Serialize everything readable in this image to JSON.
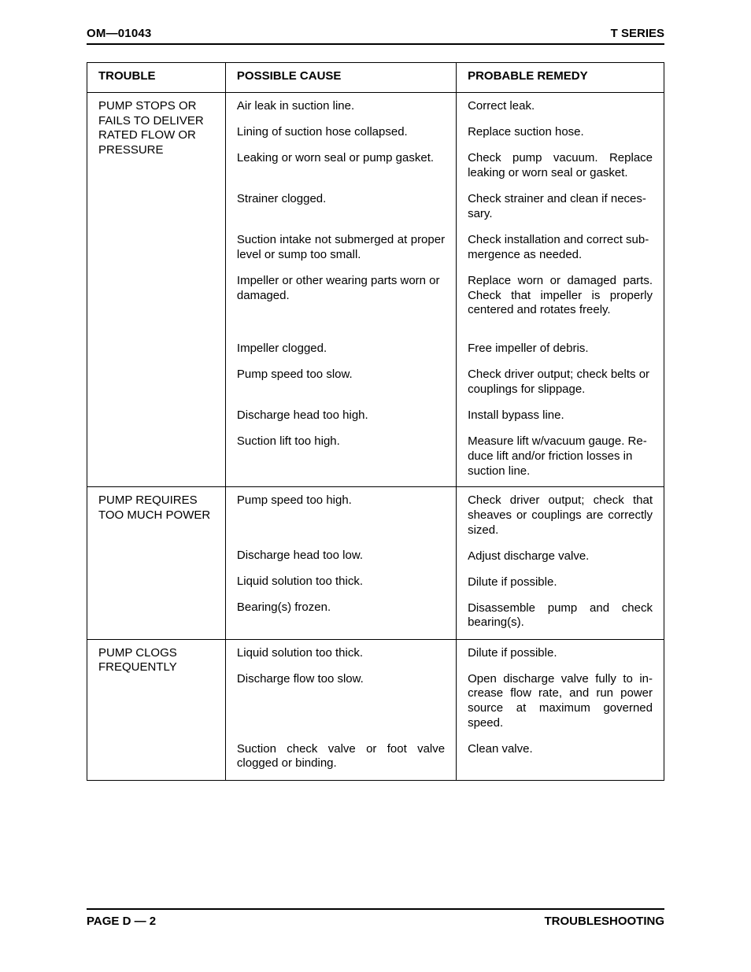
{
  "header": {
    "left": "OM—01043",
    "right": "T SERIES"
  },
  "footer": {
    "left": "PAGE D — 2",
    "right": "TROUBLESHOOTING"
  },
  "columns": {
    "trouble": "TROUBLE",
    "cause": "POSSIBLE CAUSE",
    "remedy": "PROBABLE REMEDY"
  },
  "sections": [
    {
      "trouble": "PUMP STOPS OR FAILS TO DELIVER RATED FLOW OR PRESSURE",
      "rows": [
        {
          "cause": "Air leak in suction line.",
          "remedy": "Correct leak."
        },
        {
          "cause": "Lining of suction hose collapsed.",
          "remedy": "Replace suction hose."
        },
        {
          "cause": "Leaking or worn seal or pump gasket.",
          "remedy": "Check pump vacuum. Replace leaking or worn seal or gasket.",
          "remedy_justify": true
        },
        {
          "cause": "Strainer clogged.",
          "remedy": "Check strainer and clean if neces­sary."
        },
        {
          "cause": "Suction intake not submerged at proper level or sump too small.",
          "cause_justify": true,
          "remedy": "Check installation and correct sub­mergence as needed."
        },
        {
          "cause": "Impeller or other wearing parts worn or damaged.",
          "remedy": "Replace worn or damaged parts. Check that impeller is properly centered and rotates freely.",
          "remedy_justify": true,
          "extra_gap": true
        },
        {
          "cause": "Impeller clogged.",
          "remedy": "Free impeller of debris."
        },
        {
          "cause": "Pump speed too slow.",
          "remedy": "Check driver output; check belts or couplings for slippage."
        },
        {
          "cause": "Discharge head too high.",
          "remedy": "Install bypass line."
        },
        {
          "cause": "Suction lift too high.",
          "remedy": "Measure lift w/vacuum gauge. Re­duce lift and/or friction losses in suction line."
        }
      ]
    },
    {
      "trouble": "PUMP REQUIRES TOO MUCH POWER",
      "rows": [
        {
          "cause": "Pump speed too high.",
          "remedy": "Check driver output; check that sheaves or couplings are cor­rectly sized.",
          "remedy_justify": true
        },
        {
          "cause": "Discharge head too low.",
          "remedy": "Adjust discharge valve."
        },
        {
          "cause": "Liquid solution too thick.",
          "remedy": "Dilute if possible."
        },
        {
          "cause": "Bearing(s) frozen.",
          "remedy": "Disassemble pump and check bearing(s).",
          "remedy_justify": true
        }
      ]
    },
    {
      "trouble": "PUMP CLOGS FREQUENTLY",
      "rows": [
        {
          "cause": "Liquid solution too thick.",
          "remedy": "Dilute if possible."
        },
        {
          "cause": "Discharge flow too slow.",
          "remedy": "Open discharge valve fully to in­crease flow rate, and run power source at maximum governed speed.",
          "remedy_justify": true
        },
        {
          "cause": "Suction check valve or foot valve clogged or binding.",
          "cause_justify": true,
          "remedy": "Clean valve."
        }
      ]
    }
  ]
}
